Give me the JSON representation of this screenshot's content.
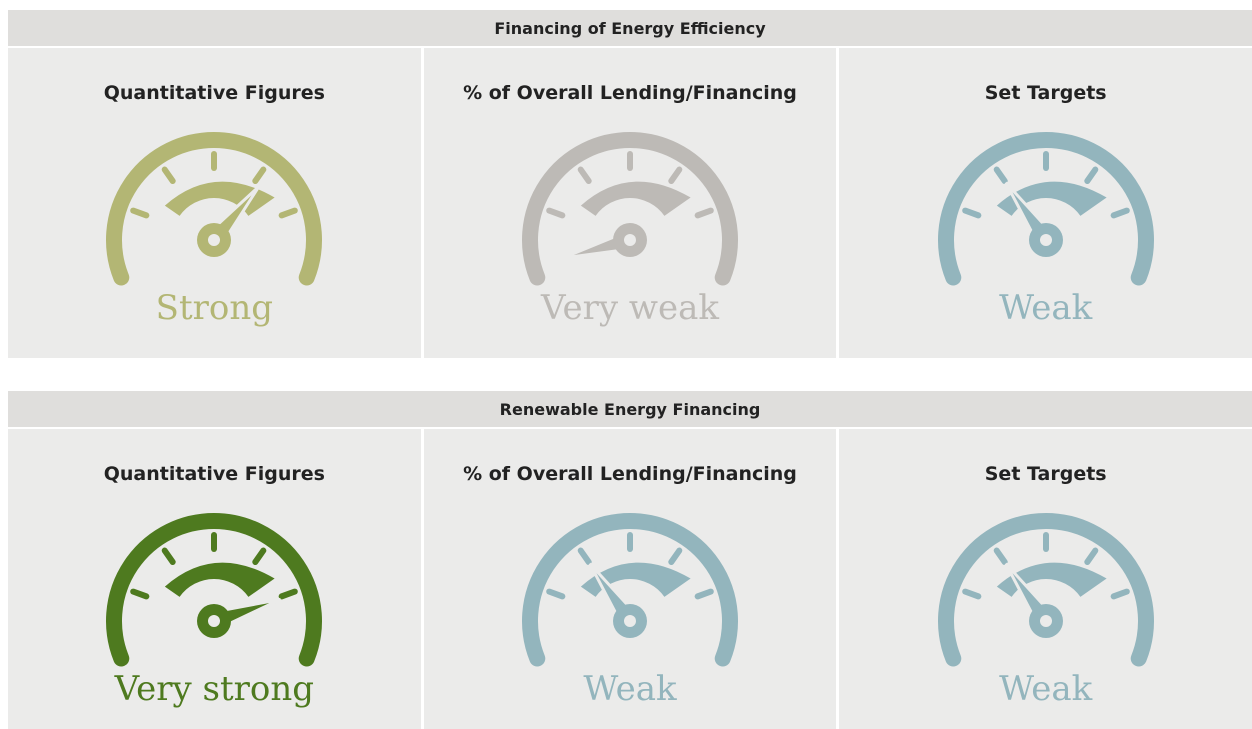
{
  "sections": [
    {
      "title": "Financing of Energy Efficiency",
      "cells": [
        {
          "heading": "Quantitative Figures",
          "rating": "Strong",
          "color": "#b3b674"
        },
        {
          "heading": "% of Overall Lending/Financing",
          "rating": "Very weak",
          "color": "#bdbab6"
        },
        {
          "heading": "Set Targets",
          "rating": "Weak",
          "color": "#93b5bd"
        }
      ]
    },
    {
      "title": "Renewable Energy Financing",
      "cells": [
        {
          "heading": "Quantitative Figures",
          "rating": "Very strong",
          "color": "#4e7a1f"
        },
        {
          "heading": "% of Overall Lending/Financing",
          "rating": "Weak",
          "color": "#93b5bd"
        },
        {
          "heading": "Set Targets",
          "rating": "Weak",
          "color": "#93b5bd"
        }
      ]
    }
  ]
}
